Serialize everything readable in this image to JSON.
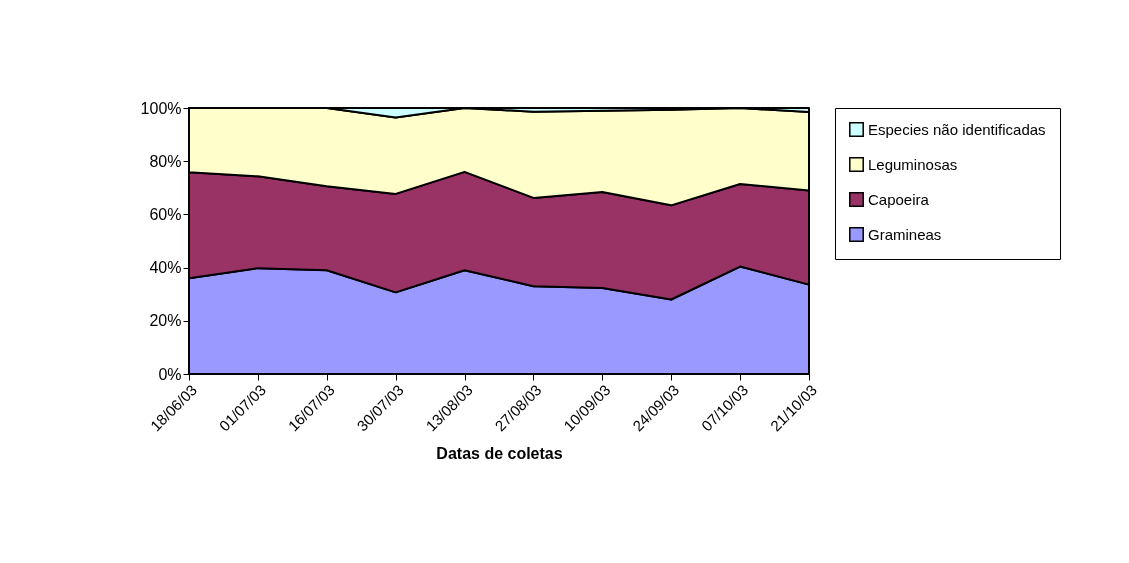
{
  "chart_data": {
    "type": "area",
    "stacked": true,
    "xlabel": "Datas de coletas",
    "categories": [
      "18/06/03",
      "01/07/03",
      "16/07/03",
      "30/07/03",
      "13/08/03",
      "27/08/03",
      "10/09/03",
      "24/09/03",
      "07/10/03",
      "21/10/03"
    ],
    "series": [
      {
        "name": "Gramineas",
        "color": "#9999ff",
        "values": [
          36.0,
          39.8,
          39.0,
          30.7,
          39.0,
          33.0,
          32.3,
          28.0,
          40.4,
          33.6
        ]
      },
      {
        "name": "Capoeira",
        "color": "#993366",
        "values": [
          39.8,
          34.5,
          31.6,
          37.0,
          37.0,
          33.2,
          36.1,
          35.4,
          31.0,
          35.4
        ]
      },
      {
        "name": "Leguminosas",
        "color": "#ffffcc",
        "values": [
          24.2,
          25.7,
          29.4,
          28.7,
          24.0,
          32.4,
          30.6,
          35.9,
          28.6,
          29.5
        ]
      },
      {
        "name": "Especies não identificadas",
        "color": "#ccffff",
        "values": [
          0,
          0,
          0,
          3.6,
          0,
          1.4,
          1.0,
          0.7,
          0,
          1.5
        ]
      }
    ],
    "ylim": [
      0,
      100
    ],
    "yticks": [
      {
        "value": 0,
        "label": "0%"
      },
      {
        "value": 20,
        "label": "20%"
      },
      {
        "value": 40,
        "label": "40%"
      },
      {
        "value": 60,
        "label": "60%"
      },
      {
        "value": 80,
        "label": "80%"
      },
      {
        "value": 100,
        "label": "100%"
      }
    ],
    "legend": "right"
  }
}
